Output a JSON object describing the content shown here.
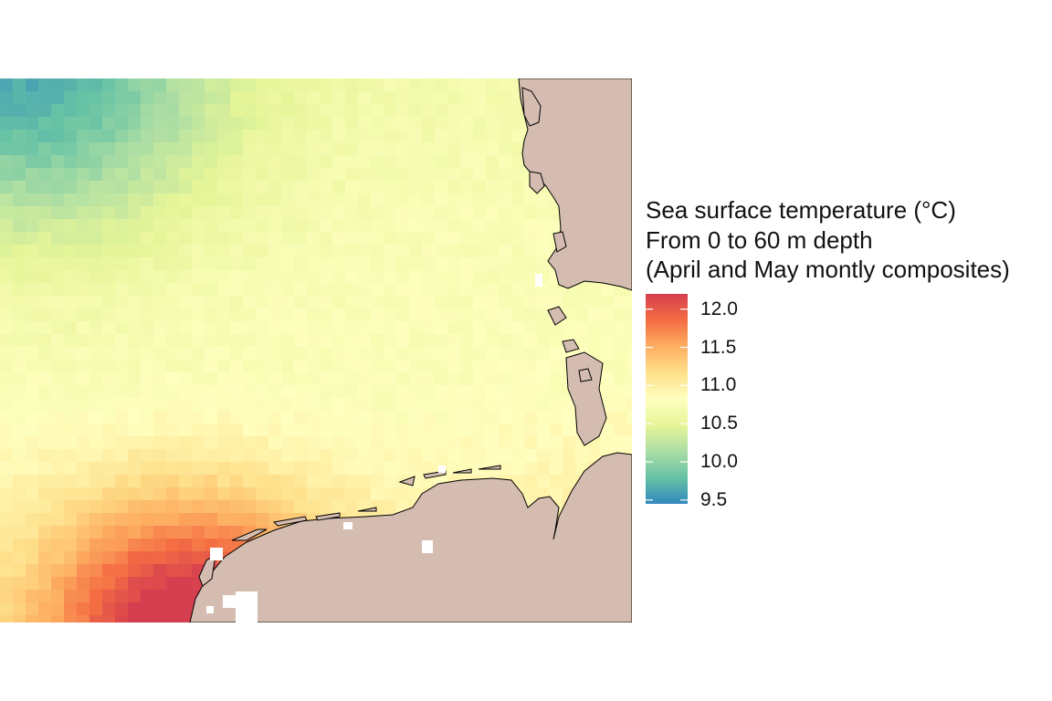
{
  "legend": {
    "title_lines": [
      "Sea surface temperature (°C)",
      "From 0 to 60 m depth",
      "(April and May montly composites)"
    ],
    "range": [
      9.45,
      12.2
    ],
    "ticks": [
      {
        "value": 12.0,
        "label": "12.0"
      },
      {
        "value": 11.5,
        "label": "11.5"
      },
      {
        "value": 11.0,
        "label": "11.0"
      },
      {
        "value": 10.5,
        "label": "10.5"
      },
      {
        "value": 10.0,
        "label": "10.0"
      },
      {
        "value": 9.5,
        "label": "9.5"
      }
    ],
    "palette": [
      "#3288bd",
      "#66c2a5",
      "#abdda4",
      "#e6f598",
      "#ffffbf",
      "#fee08b",
      "#fdae61",
      "#f46d43",
      "#d53e4f"
    ]
  },
  "map": {
    "land_color": "#d4bcb1",
    "coast_color": "#000000",
    "missing_color": "#ffffff"
  }
}
